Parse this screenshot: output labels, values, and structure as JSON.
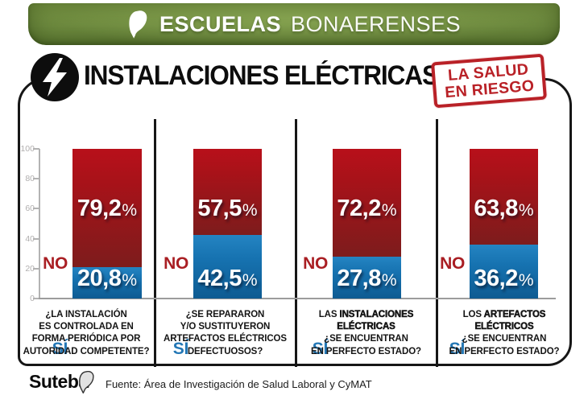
{
  "banner": {
    "title_bold": "ESCUELAS",
    "title_light": "BONAERENSES"
  },
  "header": {
    "title": "INSTALACIONES ELÉCTRICAS",
    "stamp_line1": "LA SALUD",
    "stamp_line2": "EN RIESGO"
  },
  "labels": {
    "no": "NO",
    "si": "SÍ"
  },
  "percent_sign": "%",
  "axis": {
    "ticks": [
      "100",
      "80",
      "60",
      "40",
      "20",
      "0"
    ]
  },
  "charts": [
    {
      "no_value": "79,2",
      "si_value": "20,8",
      "no_pct": 79.2,
      "si_pct": 20.8,
      "question_pre": "¿LA INSTALACIÓN\nES CONTROLADA EN\nFORMA PERIÓDICA POR\nAUTORIDAD COMPETENTE?",
      "question_strong": "",
      "question_post": ""
    },
    {
      "no_value": "57,5",
      "si_value": "42,5",
      "no_pct": 57.5,
      "si_pct": 42.5,
      "question_pre": "¿SE REPARARON\nY/O SUSTITUYERON\nARTEFACTOS ELÉCTRICOS\nDEFECTUOSOS?",
      "question_strong": "",
      "question_post": ""
    },
    {
      "no_value": "72,2",
      "si_value": "27,8",
      "no_pct": 72.2,
      "si_pct": 27.8,
      "question_pre": "LAS ",
      "question_strong": "INSTALACIONES\nELÉCTRICAS",
      "question_post": "\n¿SE ENCUENTRAN\nEN PERFECTO ESTADO?"
    },
    {
      "no_value": "63,8",
      "si_value": "36,2",
      "no_pct": 63.8,
      "si_pct": 36.2,
      "question_pre": "LOS ",
      "question_strong": "ARTEFACTOS\nELÉCTRICOS",
      "question_post": "\n¿SE ENCUENTRAN\nEN PERFECTO ESTADO?"
    }
  ],
  "footer": {
    "logo": "Suteba",
    "source": "Fuente: Área de Investigación de Salud Laboral y CyMAT"
  },
  "colors": {
    "banner_green": "#708d41",
    "no_bar_top": "#b8101a",
    "no_bar_bottom": "#7d1c1c",
    "si_bar_top": "#2484c2",
    "si_bar_bottom": "#0e5b92",
    "no_text": "#a91e23",
    "si_text": "#2377b5",
    "stamp_red": "#b92127"
  },
  "chart_data": {
    "type": "bar",
    "stacked": true,
    "unit": "%",
    "title": "INSTALACIONES ELÉCTRICAS",
    "subtitle": "LA SALUD EN RIESGO",
    "categories": [
      "¿LA INSTALACIÓN ES CONTROLADA EN FORMA PERIÓDICA POR AUTORIDAD COMPETENTE?",
      "¿SE REPARARON Y/O SUSTITUYERON ARTEFACTOS ELÉCTRICOS DEFECTUOSOS?",
      "LAS INSTALACIONES ELÉCTRICAS ¿SE ENCUENTRAN EN PERFECTO ESTADO?",
      "LOS ARTEFACTOS ELÉCTRICOS ¿SE ENCUENTRAN EN PERFECTO ESTADO?"
    ],
    "series": [
      {
        "name": "NO",
        "values": [
          79.2,
          57.5,
          72.2,
          63.8
        ]
      },
      {
        "name": "SÍ",
        "values": [
          20.8,
          42.5,
          27.8,
          36.2
        ]
      }
    ],
    "ylim": [
      0,
      100
    ],
    "yticks": [
      0,
      20,
      40,
      60,
      80,
      100
    ],
    "legend_position": "left-of-bars",
    "grid": false,
    "source": "Fuente: Área de Investigación de Salud Laboral y CyMAT"
  }
}
